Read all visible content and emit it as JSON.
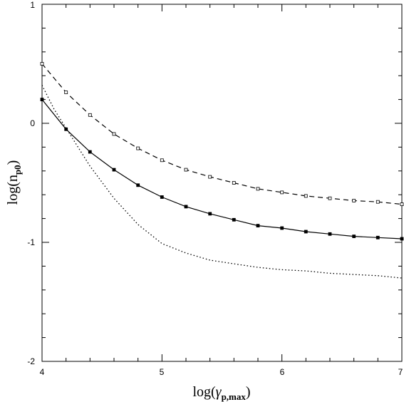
{
  "chart_data": {
    "type": "line",
    "xlabel": {
      "main": "log(",
      "greek": "γ",
      "sub": "p,max",
      "close": ")"
    },
    "ylabel": {
      "main": "log(n",
      "sub": "p0",
      "close": ")"
    },
    "xlim": [
      4,
      7
    ],
    "ylim": [
      -2,
      1
    ],
    "x_ticks": [
      "4",
      "5",
      "6",
      "7"
    ],
    "y_ticks": [
      "-2",
      "-1",
      "0",
      "1"
    ],
    "grid": false,
    "series": [
      {
        "style": "dashed",
        "marker": "square",
        "x": [
          4.0,
          4.2,
          4.4,
          4.6,
          4.8,
          5.0,
          5.2,
          5.4,
          5.6,
          5.8,
          6.0,
          6.2,
          6.4,
          6.6,
          6.8,
          7.0
        ],
        "y": [
          0.5,
          0.26,
          0.07,
          -0.09,
          -0.21,
          -0.31,
          -0.39,
          -0.45,
          -0.5,
          -0.55,
          -0.58,
          -0.61,
          -0.63,
          -0.65,
          -0.66,
          -0.68
        ]
      },
      {
        "style": "solid",
        "marker": "square",
        "x": [
          4.0,
          4.2,
          4.4,
          4.6,
          4.8,
          5.0,
          5.2,
          5.4,
          5.6,
          5.8,
          6.0,
          6.2,
          6.4,
          6.6,
          6.8,
          7.0
        ],
        "y": [
          0.2,
          -0.05,
          -0.24,
          -0.39,
          -0.52,
          -0.62,
          -0.7,
          -0.76,
          -0.81,
          -0.86,
          -0.88,
          -0.91,
          -0.93,
          -0.95,
          -0.96,
          -0.97
        ]
      },
      {
        "style": "dotted",
        "marker": "none",
        "x": [
          4.0,
          4.1,
          4.2,
          4.4,
          4.6,
          4.8,
          5.0,
          5.2,
          5.4,
          5.6,
          5.8,
          6.0,
          6.2,
          6.4,
          6.6,
          6.8,
          7.0
        ],
        "y": [
          0.32,
          0.12,
          -0.04,
          -0.36,
          -0.63,
          -0.85,
          -1.01,
          -1.09,
          -1.15,
          -1.18,
          -1.21,
          -1.23,
          -1.24,
          -1.26,
          -1.27,
          -1.28,
          -1.3
        ]
      }
    ]
  }
}
